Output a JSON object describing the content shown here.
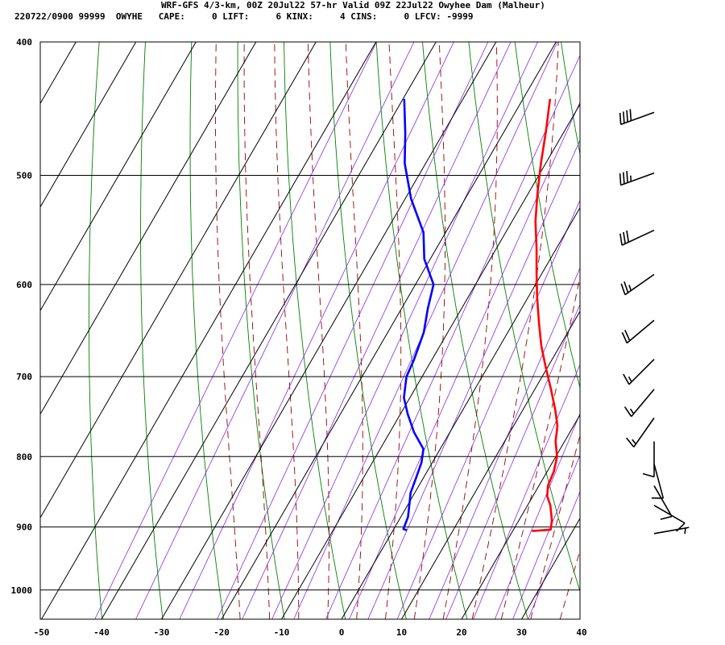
{
  "header": {
    "line1": "WRF-GFS 4/3-km, 00Z 20Jul22 57-hr Valid 09Z 22Jul22 Owyhee Dam (Malheur)",
    "line2": "220722/0900 99999  OWYHE   CAPE:     0 LIFT:     6 KINX:     4 CINS:     0 LFCV: -9999"
  },
  "chart_data": {
    "type": "line",
    "title": "WRF-GFS 4/3-km, 00Z 20Jul22 57-hr Valid 09Z 22Jul22 Owyhee Dam (Malheur)",
    "xlabel": "",
    "ylabel": "",
    "xlim": [
      -50,
      40
    ],
    "ylim": [
      1050,
      400
    ],
    "y_scale": "log-pressure",
    "x_ticks": [
      -50,
      -40,
      -30,
      -20,
      -10,
      0,
      10,
      20,
      30,
      40
    ],
    "y_ticks": [
      400,
      500,
      600,
      700,
      800,
      900,
      1000
    ],
    "grid": true,
    "colors": {
      "temperature": "#ff0000",
      "dewpoint": "#0000ff",
      "isotherm": "#000000",
      "dry_adiabat": "#008000",
      "moist_adiabat": "#990000",
      "mixing_ratio": "#8a2be2",
      "wind_barb": "#000000"
    },
    "series": [
      {
        "key": "temperature",
        "points": [
          [
            -15.5,
            440
          ],
          [
            -13,
            465
          ],
          [
            -10.8,
            490
          ],
          [
            -8.5,
            515
          ],
          [
            -6.1,
            540
          ],
          [
            -3.3,
            565
          ],
          [
            -0.8,
            590
          ],
          [
            1.5,
            613
          ],
          [
            4.3,
            640
          ],
          [
            6.9,
            665
          ],
          [
            9.8,
            690
          ],
          [
            12.7,
            715
          ],
          [
            15.4,
            740
          ],
          [
            17.3,
            760
          ],
          [
            18.5,
            780
          ],
          [
            20.2,
            800
          ],
          [
            21.1,
            820
          ],
          [
            21.5,
            840
          ],
          [
            22.4,
            855
          ],
          [
            23.8,
            868
          ],
          [
            25.5,
            890
          ],
          [
            26.2,
            904
          ],
          [
            25,
            905
          ],
          [
            23.2,
            906
          ]
        ]
      },
      {
        "key": "dewpoint",
        "points": [
          [
            -39.8,
            440
          ],
          [
            -36.3,
            466
          ],
          [
            -33.5,
            490
          ],
          [
            -29,
            520
          ],
          [
            -23.7,
            550
          ],
          [
            -21,
            575
          ],
          [
            -17,
            600
          ],
          [
            -15.6,
            625
          ],
          [
            -14,
            650
          ],
          [
            -13,
            680
          ],
          [
            -12.6,
            700
          ],
          [
            -11,
            725
          ],
          [
            -8.8,
            745
          ],
          [
            -6,
            768
          ],
          [
            -2.8,
            790
          ],
          [
            -1.8,
            808
          ],
          [
            -1.2,
            830
          ],
          [
            -0.7,
            850
          ],
          [
            0.3,
            868
          ],
          [
            1.2,
            885
          ],
          [
            1.6,
            903
          ],
          [
            2.3,
            905
          ]
        ]
      }
    ],
    "wind_barbs": [
      {
        "pressure": 450,
        "dir": 250,
        "kt": 40
      },
      {
        "pressure": 498,
        "dir": 250,
        "kt": 35
      },
      {
        "pressure": 548,
        "dir": 245,
        "kt": 30
      },
      {
        "pressure": 590,
        "dir": 235,
        "kt": 25
      },
      {
        "pressure": 637,
        "dir": 230,
        "kt": 20
      },
      {
        "pressure": 680,
        "dir": 225,
        "kt": 15
      },
      {
        "pressure": 715,
        "dir": 220,
        "kt": 15
      },
      {
        "pressure": 750,
        "dir": 215,
        "kt": 15
      },
      {
        "pressure": 780,
        "dir": 180,
        "kt": 10
      },
      {
        "pressure": 810,
        "dir": 165,
        "kt": 10
      },
      {
        "pressure": 840,
        "dir": 150,
        "kt": 10
      },
      {
        "pressure": 868,
        "dir": 120,
        "kt": 10
      },
      {
        "pressure": 910,
        "dir": 80,
        "kt": 5
      }
    ]
  }
}
